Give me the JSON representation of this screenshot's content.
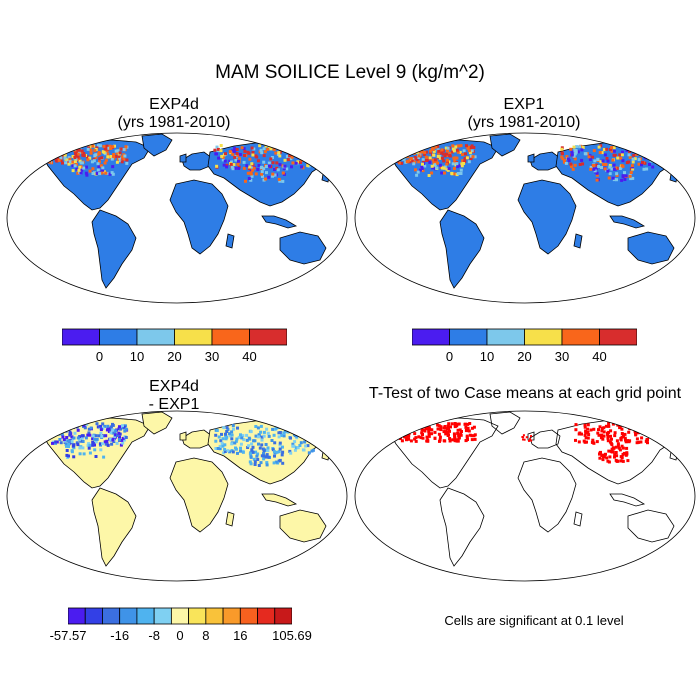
{
  "figure": {
    "title": "MAM SOILICE Level 9 (kg/m^2)",
    "significance_note": "Cells are significant at 0.1 level"
  },
  "panels": {
    "exp4d": {
      "title_line1": "EXP4d",
      "title_line2": "(yrs 1981-2010)"
    },
    "exp1": {
      "title_line1": "EXP1",
      "title_line2": "(yrs 1981-2010)"
    },
    "diff": {
      "title_line1": "EXP4d",
      "title_line2": "- EXP1"
    },
    "ttest": {
      "title": "T-Test of two Case means at each grid point"
    }
  },
  "colorbars": {
    "absolute": {
      "colors": [
        "#4b1cf0",
        "#2e7de6",
        "#7dc8eb",
        "#f7e04a",
        "#f9661b",
        "#d82d2d"
      ],
      "labels": [
        "0",
        "10",
        "20",
        "30",
        "40"
      ]
    },
    "difference": {
      "colors": [
        "#4b1cf0",
        "#3340e6",
        "#3b6fe0",
        "#3f93e8",
        "#4fb3ef",
        "#7fd0f2",
        "#fdf7a8",
        "#f9e45a",
        "#f9c23a",
        "#f99a2a",
        "#f7611f",
        "#e52a1f",
        "#c8191a"
      ],
      "labels": [
        "-57.57",
        "-16",
        "-8",
        "0",
        "8",
        "16",
        "105.69"
      ]
    }
  },
  "colors": {
    "land_blue": "#2e7de6",
    "land_diff": "#fdf7a8",
    "sig_red": "#ff0000"
  }
}
